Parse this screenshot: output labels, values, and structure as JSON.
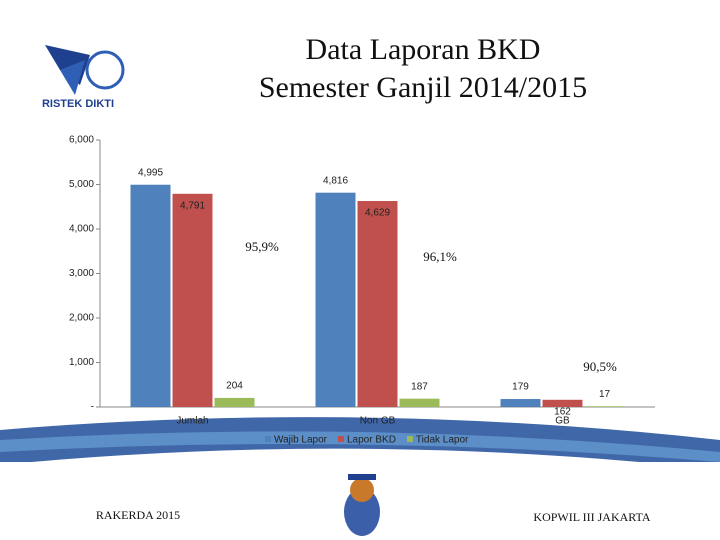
{
  "logo_text": "RISTEK DIKTI",
  "footer_left": "RAKERDA 2015",
  "footer_right": "KOPWIL III JAKARTA",
  "chart_data": {
    "type": "bar",
    "title": "Data Laporan BKD",
    "subtitle": "Semester Ganjil 2014/2015",
    "categories": [
      "Jumlah",
      "Non GB",
      "GB"
    ],
    "series": [
      {
        "name": "Wajib Lapor",
        "color": "#4f81bd",
        "values": [
          4995,
          4816,
          179
        ],
        "value_labels": [
          "4,995",
          "4,816",
          "179"
        ]
      },
      {
        "name": "Lapor BKD",
        "color": "#c0504d",
        "values": [
          4791,
          4629,
          162
        ],
        "value_labels": [
          "4,791",
          "4,629",
          "162"
        ]
      },
      {
        "name": "Tidak Lapor",
        "color": "#9bbb59",
        "values": [
          204,
          187,
          17
        ],
        "value_labels": [
          "204",
          "187",
          "17"
        ]
      }
    ],
    "annotations": [
      "95,9%",
      "96,1%",
      "90,5%"
    ],
    "ylim": [
      0,
      6000
    ],
    "yticks": [
      {
        "value": 0,
        "label": "-"
      },
      {
        "value": 1000,
        "label": "1,000"
      },
      {
        "value": 2000,
        "label": "2,000"
      },
      {
        "value": 3000,
        "label": "3,000"
      },
      {
        "value": 4000,
        "label": "4,000"
      },
      {
        "value": 5000,
        "label": "5,000"
      },
      {
        "value": 6000,
        "label": "6,000"
      }
    ],
    "legend": "bottom"
  }
}
